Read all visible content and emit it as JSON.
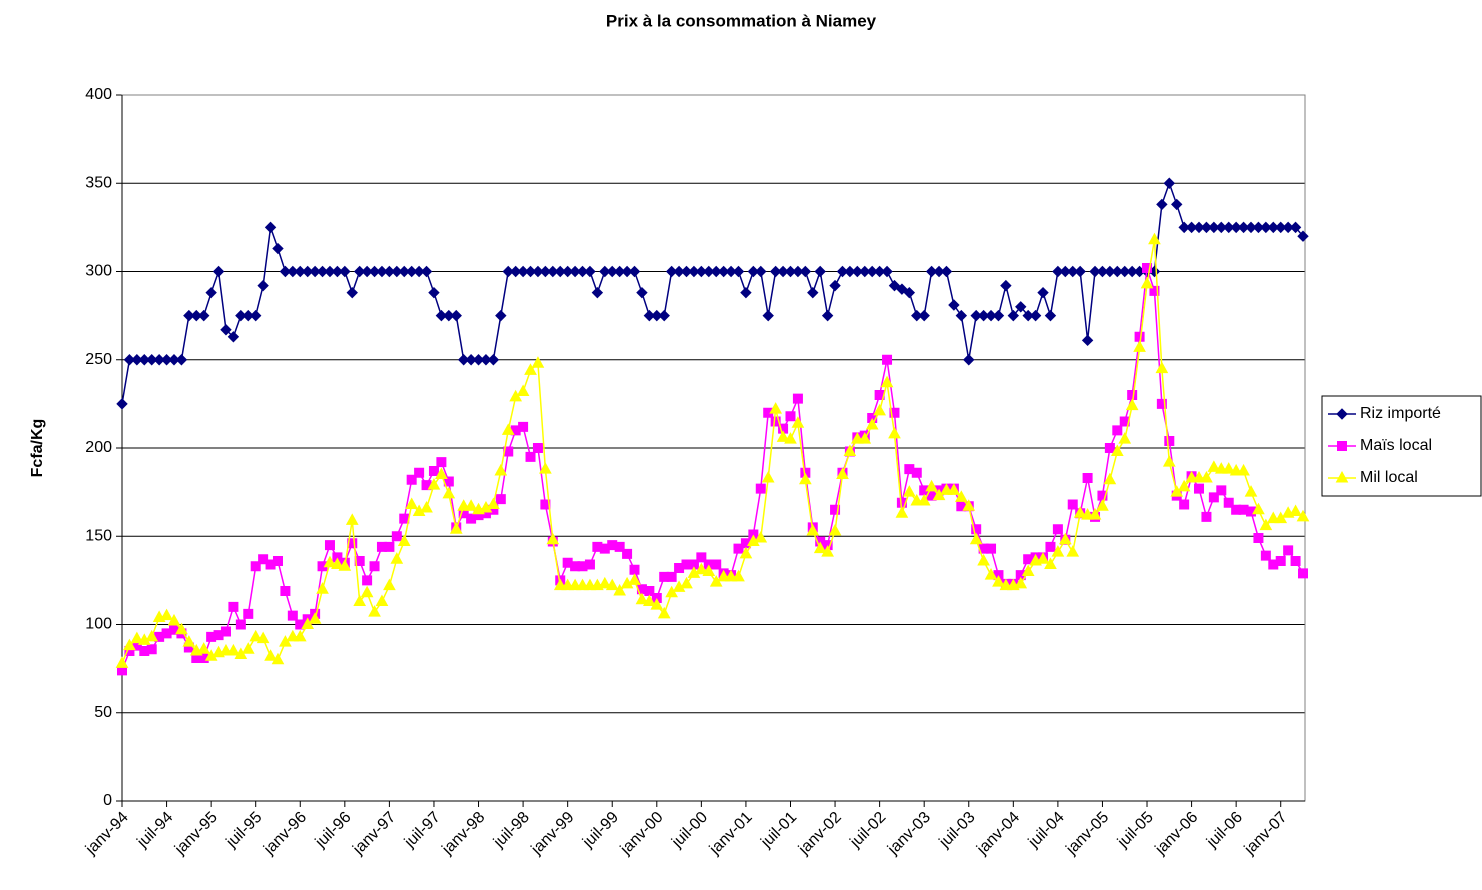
{
  "chart_data": {
    "type": "line",
    "title": "Prix à la consommation à Niamey",
    "y_label": "Fcfa/Kg",
    "categories": [
      "janv-94",
      null,
      null,
      null,
      null,
      null,
      "juil-94",
      null,
      null,
      null,
      null,
      null,
      "janv-95",
      null,
      null,
      null,
      null,
      null,
      "juil-95",
      null,
      null,
      null,
      null,
      null,
      "janv-96",
      null,
      null,
      null,
      null,
      null,
      "juil-96",
      null,
      null,
      null,
      null,
      null,
      "janv-97",
      null,
      null,
      null,
      null,
      null,
      "juil-97",
      null,
      null,
      null,
      null,
      null,
      "janv-98",
      null,
      null,
      null,
      null,
      null,
      "juil-98",
      null,
      null,
      null,
      null,
      null,
      "janv-99",
      null,
      null,
      null,
      null,
      null,
      "juil-99",
      null,
      null,
      null,
      null,
      null,
      "janv-00",
      null,
      null,
      null,
      null,
      null,
      "juil-00",
      null,
      null,
      null,
      null,
      null,
      "janv-01",
      null,
      null,
      null,
      null,
      null,
      "juil-01",
      null,
      null,
      null,
      null,
      null,
      "janv-02",
      null,
      null,
      null,
      null,
      null,
      "juil-02",
      null,
      null,
      null,
      null,
      null,
      "janv-03",
      null,
      null,
      null,
      null,
      null,
      "juil-03",
      null,
      null,
      null,
      null,
      null,
      "janv-04",
      null,
      null,
      null,
      null,
      null,
      "juil-04",
      null,
      null,
      null,
      null,
      null,
      "janv-05",
      null,
      null,
      null,
      null,
      null,
      "juil-05",
      null,
      null,
      null,
      null,
      null,
      "janv-06",
      null,
      null,
      null,
      null,
      null,
      "juil-06",
      null,
      null,
      null,
      null,
      null,
      "janv-07",
      null,
      null,
      null
    ],
    "series": [
      {
        "name": "Riz importé",
        "color": "#000080",
        "marker": "diamond",
        "values": [
          225,
          250,
          250,
          250,
          250,
          250,
          250,
          250,
          250,
          275,
          275,
          275,
          288,
          300,
          267,
          263,
          275,
          275,
          275,
          292,
          325,
          313,
          300,
          300,
          300,
          300,
          300,
          300,
          300,
          300,
          300,
          288,
          300,
          300,
          300,
          300,
          300,
          300,
          300,
          300,
          300,
          300,
          288,
          275,
          275,
          275,
          250,
          250,
          250,
          250,
          250,
          275,
          300,
          300,
          300,
          300,
          300,
          300,
          300,
          300,
          300,
          300,
          300,
          300,
          288,
          300,
          300,
          300,
          300,
          300,
          288,
          275,
          275,
          275,
          300,
          300,
          300,
          300,
          300,
          300,
          300,
          300,
          300,
          300,
          288,
          300,
          300,
          275,
          300,
          300,
          300,
          300,
          300,
          288,
          300,
          275,
          292,
          300,
          300,
          300,
          300,
          300,
          300,
          300,
          292,
          290,
          288,
          275,
          275,
          300,
          300,
          300,
          281,
          275,
          250,
          275,
          275,
          275,
          275,
          292,
          275,
          280,
          275,
          275,
          288,
          275,
          300,
          300,
          300,
          300,
          261,
          300,
          300,
          300,
          300,
          300,
          300,
          300,
          300,
          300,
          338,
          350,
          338,
          325,
          325,
          325,
          325,
          325,
          325,
          325,
          325,
          325,
          325,
          325,
          325,
          325,
          325,
          325,
          325,
          320
        ]
      },
      {
        "name": "Maïs local",
        "color": "#ff00ff",
        "marker": "square",
        "values": [
          74,
          85,
          88,
          85,
          86,
          93,
          95,
          97,
          95,
          87,
          81,
          81,
          93,
          94,
          96,
          110,
          100,
          106,
          133,
          137,
          134,
          136,
          119,
          105,
          100,
          103,
          106,
          133,
          145,
          138,
          135,
          146,
          136,
          125,
          133,
          144,
          144,
          150,
          160,
          182,
          186,
          179,
          187,
          192,
          181,
          155,
          163,
          160,
          162,
          163,
          165,
          171,
          198,
          210,
          212,
          195,
          200,
          168,
          147,
          125,
          135,
          133,
          133,
          134,
          144,
          143,
          145,
          144,
          140,
          131,
          120,
          119,
          115,
          127,
          127,
          132,
          134,
          134,
          138,
          134,
          134,
          129,
          128,
          143,
          146,
          151,
          177,
          220,
          215,
          211,
          218,
          228,
          186,
          155,
          147,
          145,
          165,
          186,
          198,
          206,
          207,
          217,
          230,
          250,
          220,
          169,
          188,
          186,
          176,
          173,
          176,
          177,
          177,
          167,
          167,
          154,
          143,
          143,
          128,
          123,
          123,
          128,
          137,
          138,
          138,
          144,
          154,
          148,
          168,
          163,
          183,
          161,
          173,
          200,
          210,
          215,
          230,
          263,
          302,
          289,
          225,
          204,
          173,
          168,
          184,
          177,
          161,
          172,
          176,
          169,
          165,
          165,
          164,
          149,
          139,
          134,
          136,
          142,
          136,
          129
        ]
      },
      {
        "name": "Mil local",
        "color": "#ffff00",
        "marker": "triangle",
        "values": [
          78,
          88,
          92,
          91,
          93,
          104,
          105,
          102,
          97,
          90,
          85,
          86,
          82,
          84,
          85,
          85,
          83,
          86,
          93,
          92,
          82,
          80,
          90,
          93,
          93,
          100,
          103,
          120,
          135,
          134,
          133,
          159,
          113,
          118,
          107,
          113,
          122,
          137,
          147,
          168,
          164,
          166,
          179,
          185,
          174,
          154,
          167,
          167,
          165,
          166,
          168,
          187,
          210,
          229,
          232,
          244,
          248,
          188,
          148,
          122,
          122,
          122,
          122,
          122,
          122,
          123,
          122,
          119,
          123,
          125,
          114,
          113,
          111,
          106,
          118,
          121,
          123,
          129,
          131,
          130,
          124,
          127,
          127,
          127,
          140,
          147,
          149,
          183,
          222,
          206,
          205,
          214,
          182,
          153,
          143,
          141,
          153,
          185,
          198,
          205,
          205,
          213,
          221,
          237,
          208,
          163,
          175,
          170,
          170,
          178,
          173,
          176,
          176,
          172,
          167,
          148,
          136,
          128,
          124,
          122,
          122,
          123,
          130,
          136,
          137,
          134,
          141,
          148,
          141,
          163,
          162,
          162,
          167,
          182,
          198,
          205,
          224,
          257,
          293,
          318,
          245,
          192,
          175,
          178,
          183,
          183,
          183,
          189,
          188,
          188,
          187,
          187,
          175,
          165,
          156,
          160,
          160,
          163,
          164,
          161
        ]
      }
    ],
    "ylim": [
      0,
      400
    ],
    "yticks": [
      0,
      50,
      100,
      150,
      200,
      250,
      300,
      350,
      400
    ],
    "grid": true,
    "legend": "right"
  }
}
